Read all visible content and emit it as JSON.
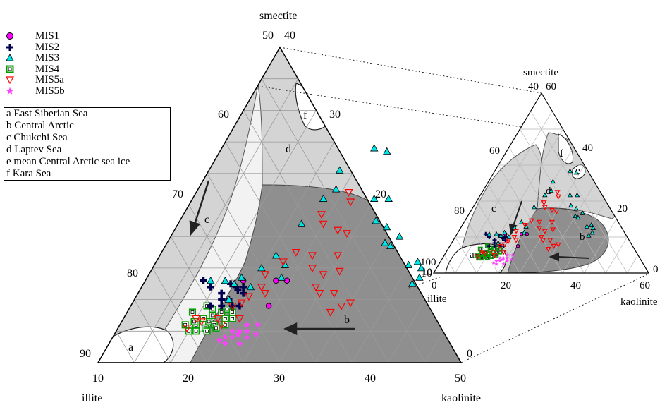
{
  "axes": {
    "top": "smectite",
    "left": "illite",
    "right": "kaolinite"
  },
  "main_ticks": {
    "smectite_50": "50",
    "smectite_40": "40",
    "s30": "30",
    "s20": "20",
    "s10": "10",
    "s0": "0",
    "i60": "60",
    "i70": "70",
    "i80": "80",
    "i90": "90",
    "k10": "10",
    "k20": "20",
    "k30": "30",
    "k40": "40",
    "k50": "50"
  },
  "inset_ticks": {
    "i100": "100",
    "i80": "80",
    "i60": "60",
    "s10": "10",
    "s40": "40",
    "s60": "60",
    "s20": "20",
    "s0": "0",
    "k0": "0",
    "k20": "20",
    "k40": "40",
    "k60": "60"
  },
  "legend": {
    "series": [
      "MIS1",
      "MIS2",
      "MIS3",
      "MIS4",
      "MIS5a",
      "MIS5b"
    ],
    "regions": [
      "a East Siberian Sea",
      "b Central Arctic",
      "c Chukchi Sea",
      "d Laptev Sea",
      "e mean Central Arctic sea ice",
      "f Kara Sea"
    ]
  },
  "region_letters": {
    "a": "a",
    "b": "b",
    "c": "c",
    "d": "d",
    "e": "e",
    "f": "f"
  },
  "colors": {
    "MIS1": "#ff00ff",
    "MIS2": "#00004f",
    "MIS3": "#00e5e5",
    "MIS4": "#00a000",
    "MIS5a": "#ff0000",
    "MIS5b": "#ff40ff",
    "region_light": "#d9d9d9",
    "region_dark": "#8c8c8c",
    "background_light": "#f2f2f2"
  },
  "chart_data": {
    "type": "ternary-scatter",
    "components": [
      "smectite",
      "illite",
      "kaolinite"
    ],
    "main_ranges": {
      "smectite": [
        0,
        50
      ],
      "illite": [
        50,
        100
      ],
      "kaolinite": [
        0,
        50
      ]
    },
    "inset_ranges": {
      "smectite": [
        0,
        60
      ],
      "illite": [
        40,
        100
      ],
      "kaolinite": [
        0,
        60
      ]
    },
    "series": [
      {
        "name": "MIS1",
        "points": [
          [
            19,
            9
          ],
          [
            18,
            13
          ],
          [
            19.5,
            13
          ],
          [
            13.5,
            13
          ]
        ]
      },
      {
        "name": "MIS2",
        "points": [
          [
            13,
            10
          ],
          [
            14,
            9
          ],
          [
            15,
            9
          ],
          [
            12,
            10
          ],
          [
            11.5,
            11
          ],
          [
            13,
            12
          ],
          [
            14.5,
            11
          ],
          [
            12.5,
            9
          ],
          [
            11,
            9
          ],
          [
            13.5,
            11.5
          ],
          [
            9.5,
            12
          ],
          [
            14,
            12
          ],
          [
            12,
            12.5
          ],
          [
            8,
            13
          ]
        ]
      },
      {
        "name": "MIS3",
        "points": [
          [
            37,
            15
          ],
          [
            36,
            16
          ],
          [
            37.5,
            13.5
          ],
          [
            37,
            12.5
          ],
          [
            35,
            15.5
          ],
          [
            31,
            18.5
          ],
          [
            30,
            19
          ],
          [
            29,
            21.5
          ],
          [
            31.5,
            20
          ],
          [
            27,
            22.5
          ],
          [
            25,
            26
          ],
          [
            27,
            26
          ],
          [
            21,
            34
          ],
          [
            23,
            33.5
          ],
          [
            18,
            30.5
          ],
          [
            19,
            27.5
          ],
          [
            18,
            26
          ],
          [
            17,
            22
          ],
          [
            16,
            17
          ],
          [
            18,
            15.5
          ],
          [
            18.5,
            13.5
          ],
          [
            15,
            15
          ],
          [
            13,
            13.5
          ],
          [
            12.5,
            12.5
          ],
          [
            15,
            12
          ],
          [
            11,
            13
          ],
          [
            13,
            10
          ],
          [
            9,
            13
          ]
        ]
      },
      {
        "name": "MIS4",
        "points": [
          [
            13.5,
            8.5
          ],
          [
            14.5,
            8
          ],
          [
            13,
            8
          ],
          [
            11.5,
            8.5
          ],
          [
            12,
            7.5
          ],
          [
            14,
            7
          ],
          [
            15,
            7
          ],
          [
            12,
            6.5
          ],
          [
            13,
            6
          ],
          [
            11,
            7
          ],
          [
            10.5,
            6
          ],
          [
            12,
            5.5
          ],
          [
            11,
            5
          ],
          [
            10,
            6.5
          ],
          [
            9,
            6
          ],
          [
            10,
            5
          ],
          [
            12.5,
            5
          ],
          [
            13.5,
            5.5
          ],
          [
            14.5,
            6
          ],
          [
            9,
            8
          ],
          [
            10.5,
            9
          ]
        ]
      },
      {
        "name": "MIS5a",
        "points": [
          [
            28,
            8
          ],
          [
            29,
            9
          ],
          [
            30,
            9.5
          ],
          [
            27,
            11
          ],
          [
            25,
            11
          ],
          [
            24,
            12
          ],
          [
            24,
            14
          ],
          [
            22,
            15
          ],
          [
            26,
            14.5
          ],
          [
            24.5,
            17
          ],
          [
            21,
            17
          ],
          [
            24,
            20.5
          ],
          [
            22.5,
            21
          ],
          [
            22,
            25.5
          ],
          [
            21,
            27
          ],
          [
            19,
            23.5
          ],
          [
            20,
            22
          ],
          [
            18.5,
            17.5
          ],
          [
            17.5,
            16
          ],
          [
            16,
            14
          ],
          [
            16.5,
            12
          ],
          [
            17.5,
            11
          ],
          [
            15.5,
            10.5
          ],
          [
            15,
            9.5
          ],
          [
            14,
            9
          ],
          [
            13,
            7
          ],
          [
            11,
            6.5
          ],
          [
            10,
            7
          ],
          [
            9.5,
            5.5
          ],
          [
            14,
            6
          ],
          [
            16,
            7
          ]
        ]
      },
      {
        "name": "MIS5b",
        "points": [
          [
            19,
            6
          ],
          [
            18,
            5
          ],
          [
            17,
            5
          ],
          [
            16.5,
            4
          ],
          [
            18.5,
            4
          ],
          [
            19.5,
            4.5
          ],
          [
            17.5,
            6
          ],
          [
            16,
            5
          ],
          [
            15.5,
            4
          ],
          [
            15,
            3.5
          ],
          [
            18,
            3
          ],
          [
            16,
            3
          ],
          [
            17,
            4.5
          ]
        ]
      }
    ],
    "regions": [
      "a",
      "b",
      "c",
      "d",
      "e",
      "f"
    ]
  }
}
